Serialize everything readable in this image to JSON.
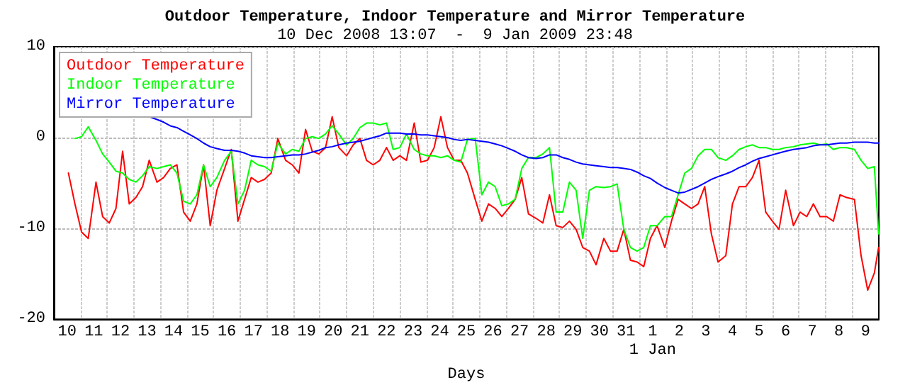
{
  "chart_data": {
    "type": "line",
    "title": "Outdoor Temperature, Indoor Temperature and Mirror Temperature",
    "subtitle": "10 Dec 2008 13:07  -  9 Jan 2009 23:48",
    "xlabel": "Days",
    "x": [
      "2008-12-10T13:07",
      "2008-12-10T19:00",
      "2008-12-11T01:00",
      "2008-12-11T07:00",
      "2008-12-11T14:00",
      "2008-12-11T20:00",
      "2008-12-12T02:00",
      "2008-12-12T08:00",
      "2008-12-12T14:00",
      "2008-12-12T20:00",
      "2008-12-13T02:00",
      "2008-12-13T08:00",
      "2008-12-13T14:00",
      "2008-12-13T21:00",
      "2008-12-14T03:00",
      "2008-12-14T09:00",
      "2008-12-14T15:00",
      "2008-12-14T21:00",
      "2008-12-15T03:00",
      "2008-12-15T09:00",
      "2008-12-15T15:00",
      "2008-12-15T21:00",
      "2008-12-16T03:00",
      "2008-12-16T10:00",
      "2008-12-16T16:00",
      "2008-12-16T22:00",
      "2008-12-17T04:00",
      "2008-12-17T10:00",
      "2008-12-17T16:00",
      "2008-12-17T22:00",
      "2008-12-18T04:00",
      "2008-12-18T10:00",
      "2008-12-18T17:00",
      "2008-12-18T23:00",
      "2008-12-19T05:00",
      "2008-12-19T11:00",
      "2008-12-19T17:00",
      "2008-12-19T23:00",
      "2008-12-20T05:00",
      "2008-12-20T11:00",
      "2008-12-20T17:00",
      "2008-12-21T00:00",
      "2008-12-21T06:00",
      "2008-12-21T12:00",
      "2008-12-21T18:00",
      "2008-12-22T00:00",
      "2008-12-22T06:00",
      "2008-12-22T12:00",
      "2008-12-22T18:00",
      "2008-12-23T00:00",
      "2008-12-23T06:00",
      "2008-12-23T13:00",
      "2008-12-23T19:00",
      "2008-12-24T01:00",
      "2008-12-24T07:00",
      "2008-12-24T13:00",
      "2008-12-24T19:00",
      "2008-12-25T01:00",
      "2008-12-25T07:00",
      "2008-12-25T13:00",
      "2008-12-25T20:00",
      "2008-12-26T02:00",
      "2008-12-26T08:00",
      "2008-12-26T14:00",
      "2008-12-26T20:00",
      "2008-12-27T02:00",
      "2008-12-27T08:00",
      "2008-12-27T14:00",
      "2008-12-27T20:00",
      "2008-12-28T03:00",
      "2008-12-28T09:00",
      "2008-12-28T15:00",
      "2008-12-28T21:00",
      "2008-12-29T03:00",
      "2008-12-29T09:00",
      "2008-12-29T15:00",
      "2008-12-29T21:00",
      "2008-12-30T03:00",
      "2008-12-30T09:00",
      "2008-12-30T16:00",
      "2008-12-30T22:00",
      "2008-12-31T04:00",
      "2008-12-31T10:00",
      "2008-12-31T16:00",
      "2008-12-31T22:00",
      "2009-01-01T04:00",
      "2009-01-01T10:00",
      "2009-01-01T16:00",
      "2009-01-01T23:00",
      "2009-01-02T05:00",
      "2009-01-02T11:00",
      "2009-01-02T17:00",
      "2009-01-02T23:00",
      "2009-01-03T05:00",
      "2009-01-03T11:00",
      "2009-01-03T17:00",
      "2009-01-03T23:00",
      "2009-01-04T06:00",
      "2009-01-04T12:00",
      "2009-01-04T18:00",
      "2009-01-05T00:00",
      "2009-01-05T06:00",
      "2009-01-05T12:00",
      "2009-01-05T18:00",
      "2009-01-06T00:00",
      "2009-01-06T06:00",
      "2009-01-06T12:00",
      "2009-01-06T19:00",
      "2009-01-07T01:00",
      "2009-01-07T07:00",
      "2009-01-07T13:00",
      "2009-01-07T19:00",
      "2009-01-08T01:00",
      "2009-01-08T07:00",
      "2009-01-08T13:00",
      "2009-01-08T19:00",
      "2009-01-09T02:00",
      "2009-01-09T08:00",
      "2009-01-09T14:00",
      "2009-01-09T20:00",
      "2009-01-09T23:48"
    ],
    "series": [
      {
        "name": "Outdoor Temperature",
        "color": "#ff0000",
        "values": [
          -3.9,
          -7.3,
          -10.4,
          -11.1,
          -4.9,
          -8.7,
          -9.4,
          -7.8,
          -1.5,
          -7.3,
          -6.6,
          -5.4,
          -2.5,
          -4.9,
          -4.4,
          -3.4,
          -3.0,
          -8.2,
          -9.2,
          -7.3,
          -3.0,
          -9.7,
          -5.8,
          -3.4,
          -1.3,
          -9.2,
          -6.8,
          -4.4,
          -4.9,
          -4.6,
          -3.9,
          -0.1,
          -2.5,
          -3.0,
          -3.9,
          0.9,
          -1.5,
          -1.8,
          -1.1,
          2.3,
          -1.1,
          -2.0,
          -0.8,
          -0.1,
          -2.5,
          -3.0,
          -2.5,
          -1.1,
          -2.5,
          -2.0,
          -2.5,
          1.6,
          -2.7,
          -2.5,
          -1.1,
          2.3,
          -1.1,
          -2.5,
          -2.5,
          -3.9,
          -6.8,
          -9.2,
          -7.3,
          -7.8,
          -8.7,
          -7.8,
          -6.8,
          -4.4,
          -8.4,
          -8.9,
          -9.4,
          -6.3,
          -9.7,
          -9.9,
          -9.2,
          -10.1,
          -12.1,
          -12.5,
          -14.0,
          -11.1,
          -12.5,
          -12.5,
          -10.1,
          -13.5,
          -13.7,
          -14.2,
          -11.1,
          -9.7,
          -12.1,
          -9.2,
          -6.8,
          -7.3,
          -7.8,
          -7.3,
          -5.4,
          -10.6,
          -13.7,
          -13.0,
          -7.3,
          -5.4,
          -5.4,
          -4.4,
          -2.5,
          -8.2,
          -9.2,
          -10.1,
          -5.8,
          -9.7,
          -8.2,
          -8.7,
          -7.3,
          -8.7,
          -8.7,
          -9.2,
          -6.3,
          -6.6,
          -6.8,
          -13.0,
          -16.8,
          -14.9,
          -12.1
        ]
      },
      {
        "name": "Indoor Temperature",
        "color": "#00ff00",
        "values": [
          null,
          -0.1,
          0.1,
          1.2,
          -0.3,
          -1.8,
          -2.7,
          -3.7,
          -3.9,
          -4.6,
          -4.9,
          -4.2,
          -3.2,
          -3.4,
          -3.2,
          -3.0,
          -3.9,
          -7.0,
          -7.3,
          -6.3,
          -3.0,
          -5.4,
          -4.4,
          -2.5,
          -1.5,
          -7.3,
          -5.8,
          -2.5,
          -3.0,
          -3.2,
          -3.7,
          -0.6,
          -1.8,
          -1.3,
          -1.5,
          -0.1,
          0.1,
          -0.1,
          0.4,
          1.3,
          0.4,
          -0.8,
          -0.1,
          1.1,
          1.6,
          1.6,
          1.4,
          1.6,
          -1.3,
          -1.1,
          0.4,
          -1.3,
          -1.8,
          -2.0,
          -2.0,
          -2.2,
          -2.0,
          -2.5,
          -2.7,
          -0.2,
          -0.1,
          -6.3,
          -4.9,
          -5.4,
          -7.5,
          -7.3,
          -6.8,
          -3.4,
          -2.2,
          -2.2,
          -1.8,
          -1.1,
          -8.2,
          -8.2,
          -4.9,
          -5.8,
          -11.1,
          -5.8,
          -5.4,
          -5.5,
          -5.4,
          -5.1,
          -10.1,
          -12.1,
          -12.5,
          -12.1,
          -9.7,
          -9.7,
          -8.7,
          -8.7,
          -6.3,
          -3.9,
          -3.4,
          -2.0,
          -1.3,
          -1.3,
          -2.2,
          -2.5,
          -2.0,
          -1.3,
          -1.0,
          -0.8,
          -1.1,
          -1.1,
          -1.3,
          -1.3,
          -1.1,
          -1.0,
          -0.8,
          -0.7,
          -0.6,
          -0.8,
          -0.7,
          -1.3,
          -1.1,
          -1.1,
          -1.3,
          -2.5,
          -3.4,
          -3.2,
          -10.6
        ]
      },
      {
        "name": "Mirror Temperature",
        "color": "#0000ff",
        "values": [
          null,
          null,
          null,
          null,
          null,
          null,
          null,
          null,
          null,
          null,
          null,
          null,
          2.3,
          2.0,
          1.7,
          1.3,
          1.1,
          0.7,
          0.3,
          -0.1,
          -0.6,
          -1.0,
          -1.2,
          -1.4,
          -1.4,
          -1.5,
          -1.7,
          -2.0,
          -2.1,
          -2.2,
          -2.2,
          -2.1,
          -2.0,
          -1.9,
          -1.9,
          -1.8,
          -1.6,
          -1.4,
          -1.1,
          -1.0,
          -0.8,
          -0.6,
          -0.5,
          -0.4,
          -0.2,
          0.0,
          0.2,
          0.5,
          0.5,
          0.5,
          0.4,
          0.4,
          0.3,
          0.3,
          0.2,
          0.1,
          0.0,
          -0.2,
          -0.3,
          -0.2,
          -0.3,
          -0.4,
          -0.5,
          -0.7,
          -0.9,
          -1.2,
          -1.5,
          -1.9,
          -2.2,
          -2.3,
          -2.2,
          -1.9,
          -1.9,
          -2.2,
          -2.4,
          -2.7,
          -2.9,
          -3.0,
          -3.1,
          -3.2,
          -3.3,
          -3.3,
          -3.4,
          -3.5,
          -3.8,
          -4.2,
          -4.5,
          -5.0,
          -5.5,
          -5.8,
          -6.1,
          -6.0,
          -5.7,
          -5.4,
          -5.0,
          -4.6,
          -4.3,
          -4.0,
          -3.7,
          -3.3,
          -3.0,
          -2.6,
          -2.3,
          -2.1,
          -1.9,
          -1.7,
          -1.5,
          -1.3,
          -1.2,
          -1.1,
          -0.9,
          -0.8,
          -0.8,
          -0.7,
          -0.6,
          -0.6,
          -0.5,
          -0.5,
          -0.5,
          -0.6,
          -0.6
        ]
      }
    ],
    "xlim": [
      "2008-12-10T00:00",
      "2009-01-10T00:00"
    ],
    "xticks": [
      {
        "value": "2008-12-10T12:00",
        "label": "10"
      },
      {
        "value": "2008-12-11T12:00",
        "label": "11"
      },
      {
        "value": "2008-12-12T12:00",
        "label": "12"
      },
      {
        "value": "2008-12-13T12:00",
        "label": "13"
      },
      {
        "value": "2008-12-14T12:00",
        "label": "14"
      },
      {
        "value": "2008-12-15T12:00",
        "label": "15"
      },
      {
        "value": "2008-12-16T12:00",
        "label": "16"
      },
      {
        "value": "2008-12-17T12:00",
        "label": "17"
      },
      {
        "value": "2008-12-18T12:00",
        "label": "18"
      },
      {
        "value": "2008-12-19T12:00",
        "label": "19"
      },
      {
        "value": "2008-12-20T12:00",
        "label": "20"
      },
      {
        "value": "2008-12-21T12:00",
        "label": "21"
      },
      {
        "value": "2008-12-22T12:00",
        "label": "22"
      },
      {
        "value": "2008-12-23T12:00",
        "label": "23"
      },
      {
        "value": "2008-12-24T12:00",
        "label": "24"
      },
      {
        "value": "2008-12-25T12:00",
        "label": "25"
      },
      {
        "value": "2008-12-26T12:00",
        "label": "26"
      },
      {
        "value": "2008-12-27T12:00",
        "label": "27"
      },
      {
        "value": "2008-12-28T12:00",
        "label": "28"
      },
      {
        "value": "2008-12-29T12:00",
        "label": "29"
      },
      {
        "value": "2008-12-30T12:00",
        "label": "30"
      },
      {
        "value": "2008-12-31T12:00",
        "label": "31"
      },
      {
        "value": "2009-01-01T12:00",
        "label": "1\n1 Jan"
      },
      {
        "value": "2009-01-02T12:00",
        "label": "2"
      },
      {
        "value": "2009-01-03T12:00",
        "label": "3"
      },
      {
        "value": "2009-01-04T12:00",
        "label": "4"
      },
      {
        "value": "2009-01-05T12:00",
        "label": "5"
      },
      {
        "value": "2009-01-06T12:00",
        "label": "6"
      },
      {
        "value": "2009-01-07T12:00",
        "label": "7"
      },
      {
        "value": "2009-01-08T12:00",
        "label": "8"
      },
      {
        "value": "2009-01-09T12:00",
        "label": "9"
      },
      {
        "value": "2008-12-11T00:00",
        "label": null
      },
      {
        "value": "2008-12-12T00:00",
        "label": null
      },
      {
        "value": "2008-12-13T00:00",
        "label": null
      },
      {
        "value": "2008-12-14T00:00",
        "label": null
      },
      {
        "value": "2008-12-15T00:00",
        "label": null
      },
      {
        "value": "2008-12-16T00:00",
        "label": null
      },
      {
        "value": "2008-12-17T00:00",
        "label": null
      },
      {
        "value": "2008-12-18T00:00",
        "label": null
      },
      {
        "value": "2008-12-19T00:00",
        "label": null
      },
      {
        "value": "2008-12-20T00:00",
        "label": null
      },
      {
        "value": "2008-12-21T00:00",
        "label": null
      },
      {
        "value": "2008-12-22T00:00",
        "label": null
      },
      {
        "value": "2008-12-23T00:00",
        "label": null
      },
      {
        "value": "2008-12-24T00:00",
        "label": null
      },
      {
        "value": "2008-12-25T00:00",
        "label": null
      },
      {
        "value": "2008-12-26T00:00",
        "label": null
      },
      {
        "value": "2008-12-27T00:00",
        "label": null
      },
      {
        "value": "2008-12-28T00:00",
        "label": null
      },
      {
        "value": "2008-12-29T00:00",
        "label": null
      },
      {
        "value": "2008-12-30T00:00",
        "label": null
      },
      {
        "value": "2008-12-31T00:00",
        "label": null
      },
      {
        "value": "2009-01-01T00:00",
        "label": null
      },
      {
        "value": "2009-01-02T00:00",
        "label": null
      },
      {
        "value": "2009-01-03T00:00",
        "label": null
      },
      {
        "value": "2009-01-04T00:00",
        "label": null
      },
      {
        "value": "2009-01-05T00:00",
        "label": null
      },
      {
        "value": "2009-01-06T00:00",
        "label": null
      },
      {
        "value": "2009-01-07T00:00",
        "label": null
      },
      {
        "value": "2009-01-08T00:00",
        "label": null
      },
      {
        "value": "2009-01-09T00:00",
        "label": null
      }
    ],
    "ylim": [
      -20,
      10
    ],
    "yticks": [
      -20,
      -10,
      0,
      10
    ],
    "grid": true,
    "legend": "top left",
    "marker": "none",
    "line_style": "solid"
  }
}
